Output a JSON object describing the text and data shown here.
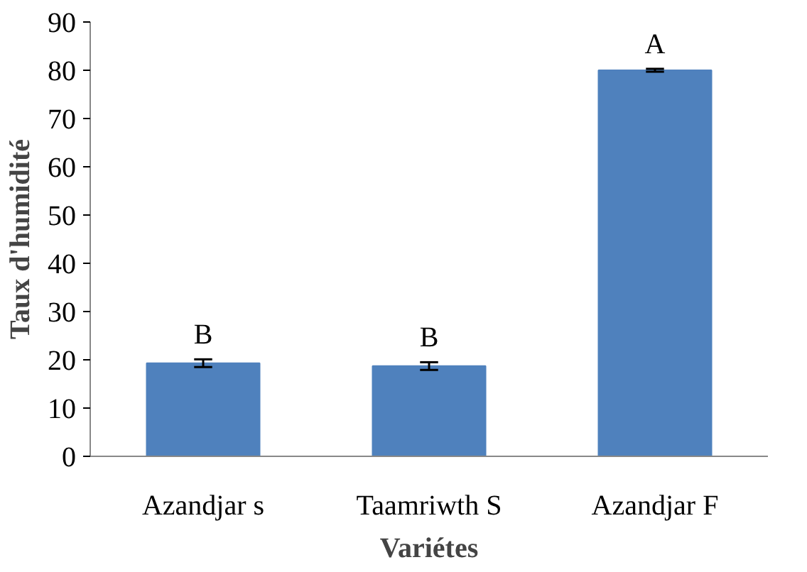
{
  "chart_data": {
    "type": "bar",
    "xlabel": "Variétes",
    "ylabel": "Taux d'humidité",
    "categories": [
      "Azandjar s",
      "Taamriwth S",
      "Azandjar F"
    ],
    "values": [
      19.3,
      18.7,
      80.0
    ],
    "errors": [
      0.8,
      0.8,
      0.3
    ],
    "color": "#4f81bd",
    "ylim": [
      0,
      90
    ],
    "yticks": [
      0,
      10,
      20,
      30,
      40,
      50,
      60,
      70,
      80,
      90
    ],
    "grid": false,
    "annotations": [
      "B",
      "B",
      "A"
    ]
  }
}
